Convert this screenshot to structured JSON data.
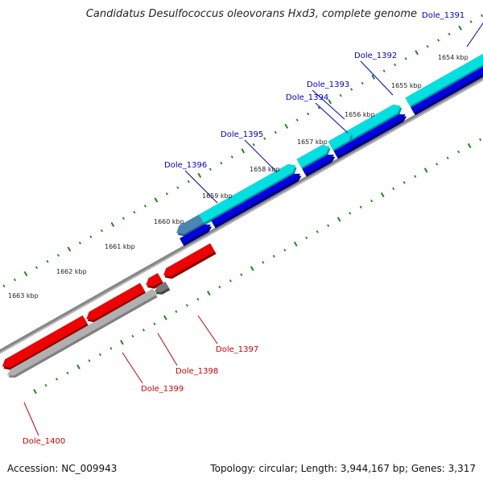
{
  "title": "Candidatus Desulfococcus oleovorans Hxd3, complete genome",
  "footer": {
    "accession": "Accession: NC_009943",
    "summary": "Topology: circular; Length: 3,944,167 bp; Genes: 3,317"
  },
  "colors": {
    "forward_gene": "#00e0e0",
    "forward_gene_alt": "#4a86b4",
    "forward_gene_3d": "#0000e0",
    "reverse_gene": "#ee0000",
    "reverse_gene_alt": "#b0b0b0",
    "backbone": "#888888",
    "tick": "#1a8a1a",
    "forward_label": "#0000cc",
    "reverse_label": "#cc0000"
  },
  "kbp_labels": [
    "1654 kbp",
    "1655 kbp",
    "1656 kbp",
    "1657 kbp",
    "1658 kbp",
    "1659 kbp",
    "1660 kbp",
    "1661 kbp",
    "1662 kbp",
    "1663 kbp"
  ],
  "genes_forward": [
    {
      "id": "Dole_1391",
      "strand": "+"
    },
    {
      "id": "Dole_1392",
      "strand": "+"
    },
    {
      "id": "Dole_1393",
      "strand": "+"
    },
    {
      "id": "Dole_1394",
      "strand": "+"
    },
    {
      "id": "Dole_1395",
      "strand": "+"
    },
    {
      "id": "Dole_1396",
      "strand": "+"
    }
  ],
  "genes_reverse": [
    {
      "id": "Dole_1397",
      "strand": "-"
    },
    {
      "id": "Dole_1398",
      "strand": "-"
    },
    {
      "id": "Dole_1399",
      "strand": "-"
    },
    {
      "id": "Dole_1400",
      "strand": "-"
    }
  ]
}
